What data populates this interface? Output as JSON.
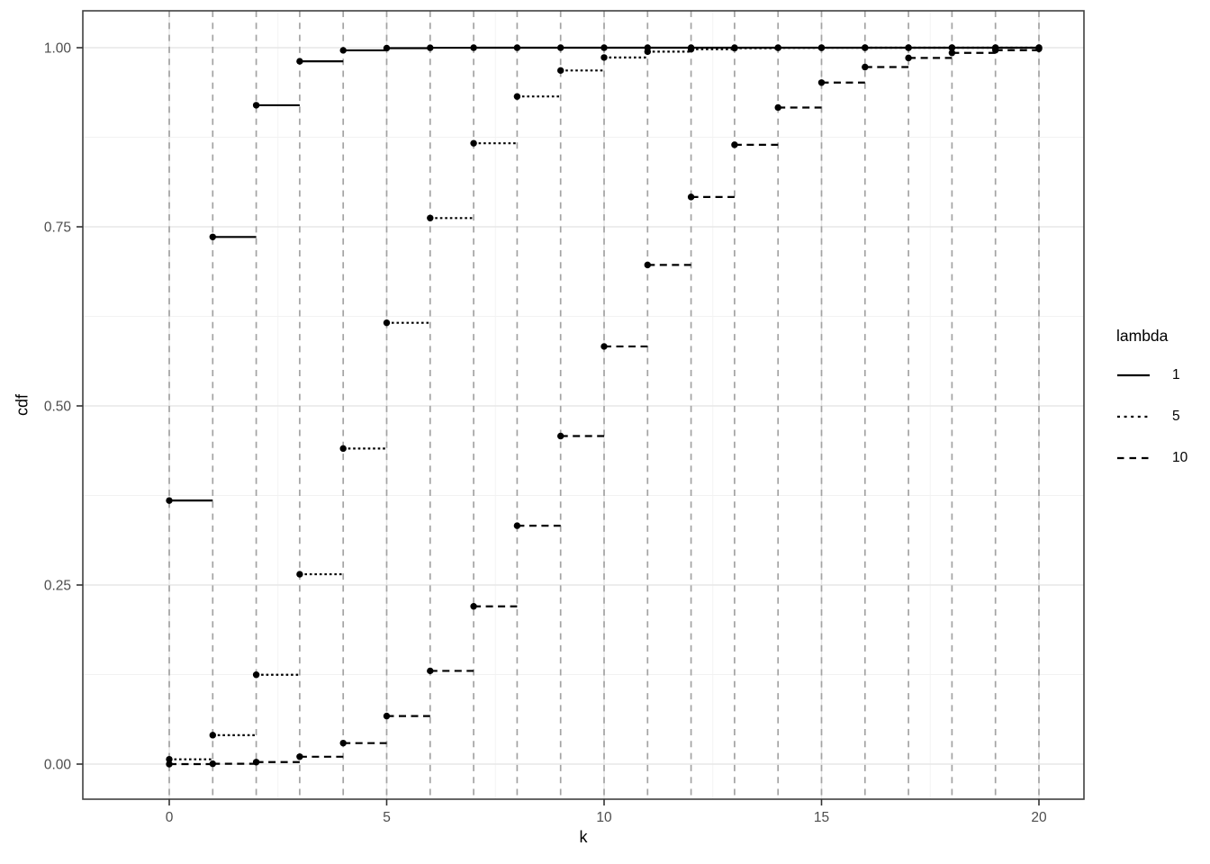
{
  "chart_data": {
    "type": "line",
    "subtype": "step-function-cdf",
    "title": "",
    "xlabel": "k",
    "ylabel": "cdf",
    "xlim": [
      0,
      20
    ],
    "ylim": [
      0,
      1
    ],
    "grid": "on",
    "x_tick_values": [
      0,
      5,
      10,
      15,
      20
    ],
    "x_tick_labels": [
      "0",
      "5",
      "10",
      "15",
      "20"
    ],
    "y_tick_values": [
      0,
      0.25,
      0.5,
      0.75,
      1
    ],
    "y_tick_labels": [
      "0.00",
      "0.25",
      "0.50",
      "0.75",
      "1.00"
    ],
    "x_minor_gridlines": [
      2.5,
      7.5,
      12.5,
      17.5
    ],
    "y_minor_gridlines": [
      0.125,
      0.375,
      0.625,
      0.875
    ],
    "vline_xs": [
      0,
      1,
      2,
      3,
      4,
      5,
      6,
      7,
      8,
      9,
      10,
      11,
      12,
      13,
      14,
      15,
      16,
      17,
      18,
      19,
      20
    ],
    "x": [
      0,
      1,
      2,
      3,
      4,
      5,
      6,
      7,
      8,
      9,
      10,
      11,
      12,
      13,
      14,
      15,
      16,
      17,
      18,
      19,
      20
    ],
    "series": [
      {
        "name": "1",
        "linetype": "solid",
        "values": [
          0.3679,
          0.7358,
          0.9197,
          0.981,
          0.9963,
          0.9994,
          0.9999,
          1,
          1,
          1,
          1,
          1,
          1,
          1,
          1,
          1,
          1,
          1,
          1,
          1,
          1
        ]
      },
      {
        "name": "5",
        "linetype": "dotted",
        "values": [
          0.0067,
          0.0404,
          0.1247,
          0.265,
          0.4405,
          0.616,
          0.7622,
          0.8666,
          0.9319,
          0.9682,
          0.9863,
          0.9945,
          0.998,
          0.9993,
          0.9998,
          0.9999,
          1,
          1,
          1,
          1,
          1
        ]
      },
      {
        "name": "10",
        "linetype": "dashed",
        "values": [
          0.0,
          0.0005,
          0.0028,
          0.0103,
          0.0293,
          0.0671,
          0.1301,
          0.2202,
          0.3328,
          0.4579,
          0.583,
          0.6968,
          0.7916,
          0.8645,
          0.9165,
          0.9513,
          0.973,
          0.9857,
          0.9928,
          0.9965,
          0.9984
        ]
      }
    ],
    "legend": {
      "title": "lambda",
      "position": "right",
      "entries": [
        {
          "label": "1",
          "linetype": "solid"
        },
        {
          "label": "5",
          "linetype": "dotted"
        },
        {
          "label": "10",
          "linetype": "dashed"
        }
      ]
    }
  },
  "colors": {
    "series_stroke": "#000000",
    "point_fill": "#000000",
    "vline": "#a3a3a3",
    "grid_major": "#e7e7e7",
    "grid_minor": "#f2f2f2",
    "panel_border": "#404040",
    "tick_mark": "#333333",
    "tick_label": "#4d4d4d",
    "axis_title": "#000000",
    "background": "#ffffff"
  }
}
